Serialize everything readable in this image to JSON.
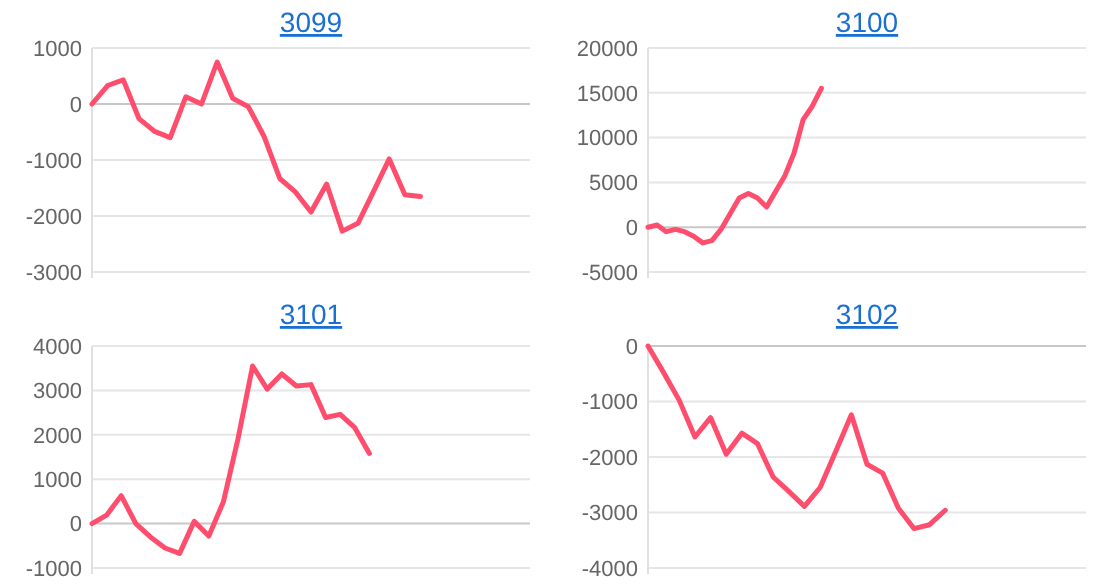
{
  "chart_data": [
    {
      "type": "line",
      "title": "3099",
      "categories": [
        null,
        null,
        null,
        null,
        null,
        null,
        null,
        null,
        null,
        null,
        null,
        null,
        null,
        null,
        null,
        null,
        null,
        null,
        null,
        null,
        null,
        null,
        null,
        null,
        null,
        null,
        null,
        null,
        null
      ],
      "series": [
        {
          "color": "#ff4d6d",
          "values": [
            0,
            330,
            430,
            -260,
            -490,
            -600,
            130,
            0,
            750,
            100,
            -50,
            -580,
            -1330,
            -1570,
            -1930,
            -1430,
            -2270,
            -2130,
            -1560,
            -980,
            -1620,
            -1650,
            null,
            null,
            null,
            null,
            null,
            null,
            null
          ]
        }
      ],
      "ylim": [
        -3000,
        1000
      ],
      "yticks": [
        -3000,
        -2000,
        -1000,
        0,
        1000
      ],
      "grid": "y",
      "tick_labels": "y",
      "marker": "none",
      "line_style": "solid"
    },
    {
      "type": "line",
      "title": "3100",
      "categories": [
        null,
        null,
        null,
        null,
        null,
        null,
        null,
        null,
        null,
        null,
        null,
        null,
        null,
        null,
        null,
        null,
        null,
        null,
        null,
        null,
        null,
        null,
        null,
        null,
        null,
        null,
        null,
        null,
        null,
        null,
        null,
        null,
        null,
        null,
        null,
        null,
        null,
        null,
        null,
        null,
        null,
        null,
        null,
        null,
        null,
        null,
        null,
        null,
        null
      ],
      "series": [
        {
          "color": "#ff4d6d",
          "values": [
            0,
            250,
            -500,
            -250,
            -500,
            -1000,
            -1750,
            -1500,
            -250,
            1500,
            3250,
            3750,
            3250,
            2250,
            4000,
            5750,
            8250,
            12000,
            13500,
            15500,
            null,
            null,
            null,
            null,
            null,
            null,
            null,
            null,
            null,
            null,
            null,
            null,
            null,
            null,
            null,
            null,
            null,
            null,
            null,
            null,
            null,
            null,
            null,
            null,
            null,
            null,
            null,
            null,
            null
          ]
        }
      ],
      "ylim": [
        -5000,
        20000
      ],
      "yticks": [
        -5000,
        0,
        5000,
        10000,
        15000,
        20000
      ],
      "grid": "y",
      "tick_labels": "y",
      "marker": "none",
      "line_style": "solid"
    },
    {
      "type": "line",
      "title": "3101",
      "categories": [
        null,
        null,
        null,
        null,
        null,
        null,
        null,
        null,
        null,
        null,
        null,
        null,
        null,
        null,
        null,
        null,
        null,
        null,
        null,
        null,
        null,
        null,
        null,
        null,
        null,
        null,
        null,
        null,
        null,
        null,
        null
      ],
      "series": [
        {
          "color": "#ff4d6d",
          "values": [
            0,
            190,
            630,
            0,
            -300,
            -550,
            -670,
            50,
            -280,
            490,
            1910,
            3550,
            3030,
            3370,
            3100,
            3130,
            2390,
            2460,
            2160,
            1580,
            null,
            null,
            null,
            null,
            null,
            null,
            null,
            null,
            null,
            null,
            null
          ]
        }
      ],
      "ylim": [
        -1000,
        4000
      ],
      "yticks": [
        -1000,
        0,
        1000,
        2000,
        3000,
        4000
      ],
      "grid": "y",
      "tick_labels": "y",
      "marker": "none",
      "line_style": "solid"
    },
    {
      "type": "line",
      "title": "3102",
      "categories": [
        null,
        null,
        null,
        null,
        null,
        null,
        null,
        null,
        null,
        null,
        null,
        null,
        null,
        null,
        null,
        null,
        null,
        null,
        null,
        null,
        null,
        null,
        null,
        null,
        null,
        null,
        null,
        null,
        null
      ],
      "series": [
        {
          "color": "#ff4d6d",
          "values": [
            0,
            -480,
            -980,
            -1640,
            -1290,
            -1950,
            -1570,
            -1760,
            -2360,
            -2620,
            -2890,
            -2550,
            -1900,
            -1240,
            -2130,
            -2290,
            -2920,
            -3290,
            -3220,
            -2960,
            null,
            null,
            null,
            null,
            null,
            null,
            null,
            null,
            null
          ]
        }
      ],
      "ylim": [
        -4000,
        0
      ],
      "yticks": [
        -4000,
        -3000,
        -2000,
        -1000,
        0
      ],
      "grid": "y",
      "tick_labels": "y",
      "marker": "none",
      "line_style": "solid"
    }
  ]
}
